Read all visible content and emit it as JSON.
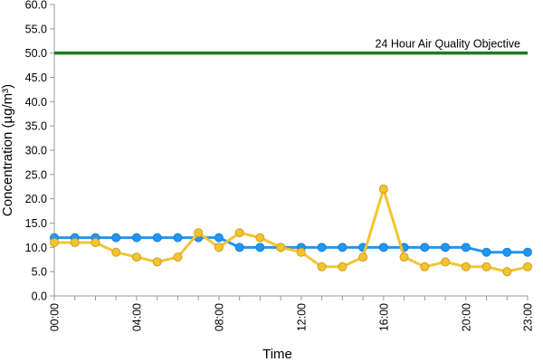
{
  "chart_data": {
    "type": "line",
    "title": "",
    "xlabel": "Time",
    "ylabel": "Concentration (µg/m³)",
    "ylim": [
      0,
      60
    ],
    "y_ticks": [
      "0.0",
      "5.0",
      "10.0",
      "15.0",
      "20.0",
      "25.0",
      "30.0",
      "35.0",
      "40.0",
      "45.0",
      "50.0",
      "55.0",
      "60.0"
    ],
    "x_tick_labels": [
      "00:00",
      "04:00",
      "08:00",
      "12:00",
      "16:00",
      "20:00",
      "23:00"
    ],
    "x_tick_hours": [
      0,
      4,
      8,
      12,
      16,
      20,
      23
    ],
    "x_hours": [
      0,
      1,
      2,
      3,
      4,
      5,
      6,
      7,
      8,
      9,
      10,
      11,
      12,
      13,
      14,
      15,
      16,
      17,
      18,
      19,
      20,
      21,
      22,
      23
    ],
    "grid": false,
    "legend": "none",
    "objective": {
      "label": "24 Hour Air Quality Objective",
      "value": 50,
      "color": "#1e7b1e"
    },
    "series": [
      {
        "color": "#2196f3",
        "values": [
          12,
          12,
          12,
          12,
          12,
          12,
          12,
          12,
          12,
          10,
          10,
          10,
          10,
          10,
          10,
          10,
          10,
          10,
          10,
          10,
          10,
          9,
          9,
          9
        ]
      },
      {
        "color": "#f4c430",
        "values": [
          11,
          11,
          11,
          9,
          8,
          7,
          8,
          13,
          10,
          13,
          12,
          10,
          9,
          6,
          6,
          8,
          22,
          8,
          6,
          7,
          6,
          6,
          5,
          6
        ]
      }
    ]
  }
}
